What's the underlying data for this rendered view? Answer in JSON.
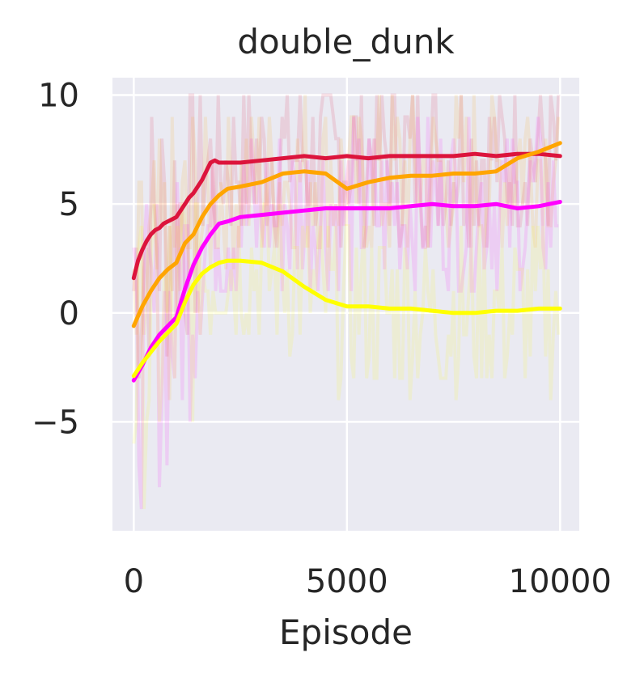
{
  "chart_data": {
    "type": "line",
    "title": "double_dunk",
    "xlabel": "Episode",
    "ylabel": "",
    "xlim": [
      -500,
      10450
    ],
    "ylim": [
      -10,
      10.8
    ],
    "xticks": [
      0,
      5000,
      10000
    ],
    "xtick_labels": [
      "0",
      "5000",
      "10000"
    ],
    "yticks": [
      -5,
      0,
      5,
      10
    ],
    "ytick_labels": [
      "−5",
      "0",
      "5",
      "10"
    ],
    "grid": true,
    "legend": "none",
    "background_color": "#eaeaf2",
    "series": [
      {
        "color": "#dc143c",
        "x": [
          0,
          100,
          200,
          300,
          400,
          500,
          600,
          700,
          800,
          900,
          1000,
          1100,
          1200,
          1300,
          1400,
          1500,
          1600,
          1700,
          1800,
          1900,
          2000,
          2500,
          3000,
          3500,
          4000,
          4500,
          5000,
          5500,
          6000,
          6500,
          7000,
          7500,
          8000,
          8500,
          9000,
          9500,
          10000
        ],
        "y": [
          1.6,
          2.4,
          2.9,
          3.3,
          3.6,
          3.8,
          3.9,
          4.1,
          4.2,
          4.3,
          4.4,
          4.7,
          5.0,
          5.3,
          5.5,
          5.8,
          6.1,
          6.5,
          6.9,
          7.0,
          6.9,
          6.9,
          7.0,
          7.1,
          7.2,
          7.1,
          7.2,
          7.1,
          7.2,
          7.2,
          7.2,
          7.2,
          7.3,
          7.2,
          7.3,
          7.3,
          7.2
        ]
      },
      {
        "color": "#ffa500",
        "x": [
          0,
          200,
          400,
          600,
          800,
          1000,
          1200,
          1400,
          1600,
          1800,
          2000,
          2200,
          2500,
          3000,
          3500,
          4000,
          4500,
          5000,
          5500,
          6000,
          6500,
          7000,
          7500,
          8000,
          8500,
          9000,
          9500,
          10000
        ],
        "y": [
          -0.6,
          0.3,
          1.0,
          1.6,
          2.0,
          2.3,
          3.2,
          3.6,
          4.4,
          5.0,
          5.4,
          5.7,
          5.8,
          6.0,
          6.4,
          6.5,
          6.4,
          5.7,
          6.0,
          6.2,
          6.3,
          6.3,
          6.4,
          6.4,
          6.5,
          7.1,
          7.4,
          7.8
        ]
      },
      {
        "color": "#ff00ff",
        "x": [
          0,
          200,
          400,
          600,
          800,
          1000,
          1200,
          1400,
          1600,
          1800,
          2000,
          2200,
          2500,
          3000,
          3500,
          4000,
          4500,
          5000,
          5500,
          6000,
          6500,
          7000,
          7500,
          8000,
          8500,
          9000,
          9500,
          10000
        ],
        "y": [
          -3.1,
          -2.4,
          -1.6,
          -1.0,
          -0.6,
          -0.2,
          1.1,
          2.2,
          3.0,
          3.6,
          4.1,
          4.2,
          4.4,
          4.5,
          4.6,
          4.7,
          4.8,
          4.8,
          4.8,
          4.8,
          4.9,
          5.0,
          4.9,
          4.9,
          5.0,
          4.8,
          4.9,
          5.1
        ]
      },
      {
        "color": "#ffff00",
        "x": [
          0,
          200,
          400,
          600,
          800,
          1000,
          1200,
          1400,
          1600,
          1800,
          2000,
          2200,
          2500,
          3000,
          3500,
          4000,
          4500,
          5000,
          5500,
          6000,
          6500,
          7000,
          7500,
          8000,
          8500,
          9000,
          9500,
          10000
        ],
        "y": [
          -2.9,
          -2.3,
          -1.8,
          -1.3,
          -0.9,
          -0.5,
          0.5,
          1.3,
          1.8,
          2.1,
          2.3,
          2.4,
          2.4,
          2.3,
          1.9,
          1.2,
          0.6,
          0.3,
          0.3,
          0.2,
          0.2,
          0.1,
          0.0,
          0.0,
          0.1,
          0.1,
          0.2,
          0.2
        ]
      }
    ]
  }
}
